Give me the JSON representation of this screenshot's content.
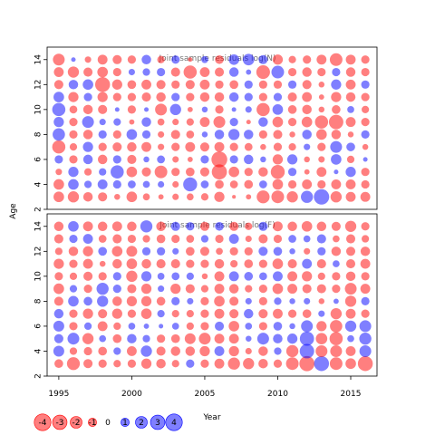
{
  "chart_data": {
    "type": "scatter",
    "ylabel": "Age",
    "xlabel": "Year",
    "xlim": [
      1994.2,
      2016.8
    ],
    "x_ticks": [
      "1995",
      "2000",
      "2005",
      "2010",
      "2015"
    ],
    "x_tick_values": [
      1995,
      2000,
      2005,
      2010,
      2015
    ],
    "ylim": [
      2.0,
      15.0
    ],
    "y_ticks": [
      "2",
      "4",
      "6",
      "8",
      "10",
      "12",
      "14"
    ],
    "y_tick_values": [
      2,
      4,
      6,
      8,
      10,
      12,
      14
    ],
    "years": [
      1995,
      1996,
      1997,
      1998,
      1999,
      2000,
      2001,
      2002,
      2003,
      2004,
      2005,
      2006,
      2007,
      2008,
      2009,
      2010,
      2011,
      2012,
      2013,
      2014,
      2015,
      2016
    ],
    "ages": [
      3,
      4,
      5,
      6,
      7,
      8,
      9,
      10,
      11,
      12,
      13,
      14
    ],
    "colors": {
      "positive": "#0000ff",
      "negative": "#ff0000",
      "opacity": 0.5
    },
    "panels": [
      {
        "title": "Joint sample residuals log(N)",
        "residuals": [
          [
            -1.6,
            -1.8,
            -1.3,
            -1.2,
            -0.5,
            -1.6,
            -0.7,
            -0.4,
            -0.6,
            -0.7,
            -0.8,
            -1.5,
            -0.2,
            -0.4,
            -2.4,
            -2.3,
            -1.8,
            2.1,
            3.4,
            -1.8,
            -1.4,
            -1.4
          ],
          [
            -1.6,
            1.6,
            0.8,
            1.4,
            1.0,
            0.9,
            0.7,
            0.6,
            -0.6,
            2.8,
            0.9,
            -1.1,
            -0.9,
            -1.1,
            0.9,
            -1.6,
            -1.0,
            -1.4,
            -1.0,
            -1.4,
            -1.4,
            -1.0
          ],
          [
            -0.6,
            1.5,
            -0.8,
            0.8,
            2.5,
            -1.6,
            -1.2,
            -2.3,
            -1.0,
            -1.1,
            -1.2,
            -3.3,
            -1.6,
            -1.0,
            -1.3,
            -2.8,
            1.0,
            -0.4,
            -1.4,
            0.3,
            1.5,
            -1.0
          ],
          [
            1.0,
            -1.0,
            1.3,
            -1.3,
            1.0,
            -1.2,
            0.5,
            0.9,
            -0.6,
            -0.4,
            1.0,
            -3.6,
            1.0,
            1.3,
            0.5,
            -1.5,
            1.5,
            -0.5,
            -0.6,
            1.6,
            -0.8,
            0.3
          ],
          [
            -2.5,
            -0.8,
            1.5,
            -1.0,
            -1.2,
            -1.3,
            -1.4,
            -0.6,
            -1.0,
            -1.4,
            -1.2,
            -1.4,
            -1.0,
            -0.9,
            -0.5,
            -1.0,
            -0.8,
            0.6,
            -1.0,
            2.0,
            1.1,
            -0.5
          ],
          [
            2.2,
            -1.0,
            -1.3,
            1.0,
            -1.0,
            1.6,
            1.0,
            -0.6,
            -1.2,
            -0.9,
            0.5,
            1.3,
            1.8,
            1.3,
            -1.0,
            -1.2,
            -0.5,
            1.3,
            -1.6,
            -1.3,
            -0.5,
            1.0
          ],
          [
            1.5,
            -1.0,
            2.0,
            0.6,
            0.8,
            -0.4,
            1.3,
            -0.7,
            -0.6,
            -0.8,
            -1.4,
            -2.0,
            1.0,
            -0.3,
            1.3,
            -1.6,
            -1.0,
            -1.6,
            -2.5,
            -3.0,
            -1.4,
            -1.0
          ],
          [
            2.5,
            -0.9,
            -1.3,
            -1.2,
            0.3,
            -1.0,
            0.3,
            -2.0,
            1.8,
            -0.4,
            0.5,
            -1.0,
            0.3,
            0.6,
            -2.5,
            1.6,
            -1.1,
            -1.3,
            -0.5,
            -1.1,
            0.7,
            -0.8
          ],
          [
            1.6,
            -1.5,
            1.0,
            -1.5,
            -1.0,
            -1.0,
            -1.2,
            -1.3,
            1.0,
            -1.0,
            -1.3,
            -1.3,
            1.3,
            1.0,
            -1.0,
            1.0,
            -1.2,
            -1.4,
            -0.4,
            -1.5,
            -1.3,
            -1.0
          ],
          [
            -1.2,
            1.3,
            1.6,
            -3.2,
            -1.5,
            -1.1,
            -1.4,
            -1.2,
            -1.0,
            -1.2,
            -1.4,
            -1.0,
            -1.1,
            1.0,
            -1.0,
            -1.0,
            1.0,
            -1.2,
            -0.5,
            1.5,
            -1.4,
            1.0
          ],
          [
            -1.4,
            -1.8,
            -1.2,
            -1.6,
            -1.0,
            0.6,
            0.8,
            1.0,
            -1.2,
            -2.5,
            -1.4,
            -1.2,
            1.3,
            0.4,
            -2.7,
            2.3,
            -1.0,
            -1.3,
            -1.0,
            1.0,
            -1.3,
            -1.0
          ],
          [
            -2.0,
            0.3,
            -0.6,
            -1.4,
            -1.2,
            -1.0,
            1.3,
            -0.8,
            1.0,
            -0.3,
            0.7,
            -1.1,
            1.6,
            1.9,
            1.2,
            -1.5,
            -0.8,
            -1.0,
            -1.4,
            -2.3,
            -1.4,
            -1.0
          ]
        ]
      },
      {
        "title": "Joint sample residuals log(F)",
        "residuals": [
          [
            -1.1,
            -2.4,
            -1.2,
            -1.0,
            -0.8,
            -1.0,
            -1.5,
            -1.3,
            -0.8,
            1.0,
            -1.0,
            -1.4,
            -2.1,
            -1.8,
            -1.3,
            -1.0,
            -2.3,
            -3.3,
            3.2,
            -2.3,
            -1.6,
            -3.2
          ],
          [
            1.7,
            -0.8,
            -1.0,
            -1.1,
            0.8,
            -1.4,
            1.8,
            -1.2,
            -1.3,
            -1.3,
            -1.5,
            1.4,
            -1.5,
            -0.6,
            -1.3,
            0.8,
            -2.1,
            3.0,
            -2.0,
            -2.0,
            -1.4,
            2.0
          ],
          [
            1.2,
            2.0,
            -1.8,
            0.7,
            -1.1,
            1.3,
            0.8,
            -1.0,
            -1.1,
            -1.7,
            -2.0,
            -1.4,
            -1.4,
            0.5,
            2.0,
            1.3,
            1.5,
            2.9,
            -1.9,
            -2.5,
            0.7,
            2.1
          ],
          [
            1.7,
            -1.0,
            0.8,
            -1.4,
            -0.8,
            0.7,
            0.4,
            0.3,
            0.7,
            -0.8,
            -1.0,
            1.2,
            -1.6,
            0.7,
            -1.0,
            1.1,
            0.5,
            2.0,
            -1.5,
            -2.2,
            1.8,
            2.0
          ],
          [
            1.3,
            -1.0,
            -1.5,
            -1.2,
            -1.5,
            -1.0,
            -1.6,
            0.8,
            -0.8,
            -0.8,
            -1.0,
            -1.4,
            -1.2,
            1.3,
            -1.2,
            -1.4,
            -1.0,
            -1.1,
            0.6,
            -1.8,
            -1.4,
            -1.0
          ],
          [
            -1.2,
            1.6,
            1.1,
            1.8,
            -1.3,
            -1.5,
            -1.5,
            -1.1,
            1.0,
            0.6,
            -1.0,
            -1.6,
            -1.2,
            0.6,
            -1.0,
            0.8,
            0.5,
            0.6,
            -0.5,
            0.4,
            -1.8,
            1.0
          ],
          [
            -1.6,
            0.8,
            -1.0,
            2.1,
            1.0,
            -1.2,
            -1.5,
            0.6,
            -1.5,
            -1.2,
            -0.8,
            -1.4,
            -1.3,
            -0.8,
            -1.0,
            -1.6,
            -1.4,
            -1.2,
            -1.2,
            -1.0,
            -2.0,
            -1.4
          ],
          [
            -1.0,
            -0.8,
            -1.2,
            -1.0,
            1.0,
            -1.8,
            1.5,
            0.7,
            0.9,
            0.8,
            -0.5,
            -1.4,
            1.4,
            1.1,
            0.9,
            1.4,
            -1.4,
            -1.5,
            -0.8,
            -1.0,
            -1.3,
            -1.0
          ],
          [
            -1.5,
            -1.0,
            -1.4,
            -0.5,
            -1.3,
            -1.6,
            -1.3,
            -1.2,
            -1.2,
            -1.0,
            -1.0,
            -1.3,
            -0.8,
            -1.1,
            -1.0,
            -1.6,
            -1.2,
            1.4,
            -1.2,
            0.7,
            -1.2,
            -1.4
          ],
          [
            -0.8,
            -1.3,
            -1.5,
            1.1,
            -1.6,
            -1.7,
            1.0,
            1.0,
            0.6,
            -1.1,
            -1.2,
            -0.7,
            -1.0,
            -1.0,
            1.2,
            1.1,
            0.5,
            -0.6,
            1.0,
            -1.3,
            -1.2,
            -1.3
          ],
          [
            -1.2,
            1.0,
            1.4,
            -0.9,
            -1.2,
            -1.0,
            -0.8,
            -1.1,
            -1.0,
            -0.9,
            0.8,
            -1.0,
            1.4,
            -0.6,
            -1.2,
            -1.0,
            0.9,
            0.7,
            1.2,
            -0.7,
            -1.2,
            -0.8
          ],
          [
            -1.3,
            1.6,
            -1.4,
            -1.3,
            -1.4,
            -1.3,
            2.1,
            -1.3,
            1.2,
            1.0,
            -1.2,
            1.1,
            -1.2,
            -0.8,
            1.2,
            -1.4,
            -1.3,
            -1.6,
            -1.3,
            -1.2,
            -1.8,
            -1.0
          ]
        ]
      }
    ],
    "legend": {
      "placement": "bottom-left",
      "labels": [
        "-4",
        "-3",
        "-2",
        "-1",
        "0",
        "1",
        "2",
        "3",
        "4"
      ],
      "values": [
        -4,
        -3,
        -2,
        -1,
        0,
        1,
        2,
        3,
        4
      ]
    }
  }
}
